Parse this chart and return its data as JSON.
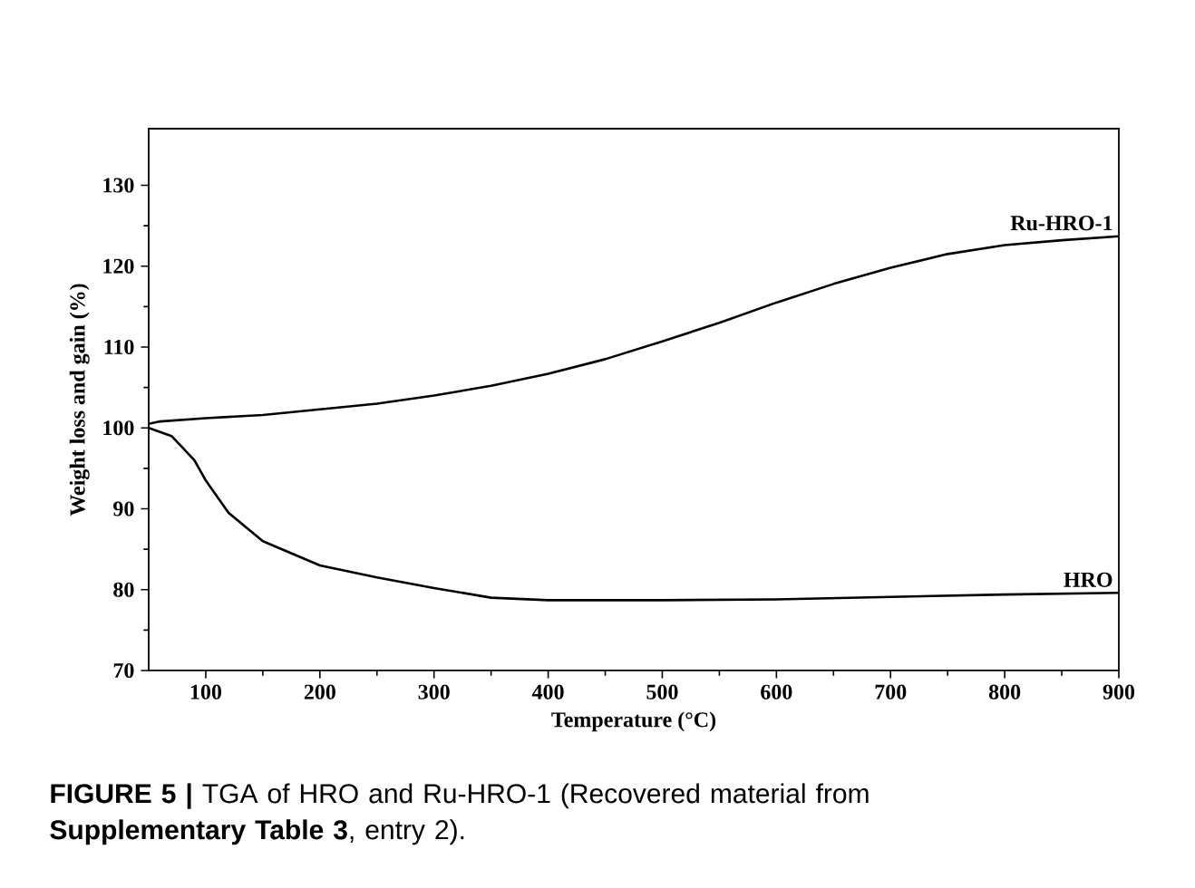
{
  "chart_data": {
    "type": "line",
    "xlabel": "Temperature (°C)",
    "ylabel": "Weight loss and gain (%)",
    "xlim": [
      50,
      900
    ],
    "xticks": [
      100,
      200,
      300,
      400,
      500,
      600,
      700,
      800,
      900
    ],
    "ylim": [
      70,
      137
    ],
    "yticks": [
      70,
      80,
      90,
      100,
      110,
      120,
      130
    ],
    "grid": false,
    "legend": false,
    "marker": "none",
    "line_style": "solid",
    "annotations": [
      "**FIGURE 5 |** TGA of HRO and Ru-HRO-1 (Recovered material from **Supplementary Table 3**, entry 2)."
    ],
    "series": [
      {
        "name": "Ru-HRO-1",
        "color": "#000000",
        "x": [
          50,
          60,
          100,
          150,
          200,
          250,
          300,
          350,
          400,
          450,
          500,
          550,
          600,
          650,
          700,
          750,
          800,
          850,
          900
        ],
        "values": [
          100.5,
          100.8,
          101.2,
          101.6,
          102.3,
          103.0,
          104.0,
          105.2,
          106.7,
          108.5,
          110.7,
          113.0,
          115.5,
          117.8,
          119.8,
          121.5,
          122.6,
          123.2,
          123.7
        ]
      },
      {
        "name": "HRO",
        "color": "#000000",
        "x": [
          50,
          70,
          90,
          100,
          120,
          150,
          200,
          250,
          300,
          350,
          400,
          500,
          600,
          700,
          800,
          900
        ],
        "values": [
          100,
          99,
          96,
          93.5,
          89.5,
          86,
          83,
          81.5,
          80.2,
          79,
          78.7,
          78.7,
          78.8,
          79.1,
          79.4,
          79.6
        ]
      }
    ]
  }
}
